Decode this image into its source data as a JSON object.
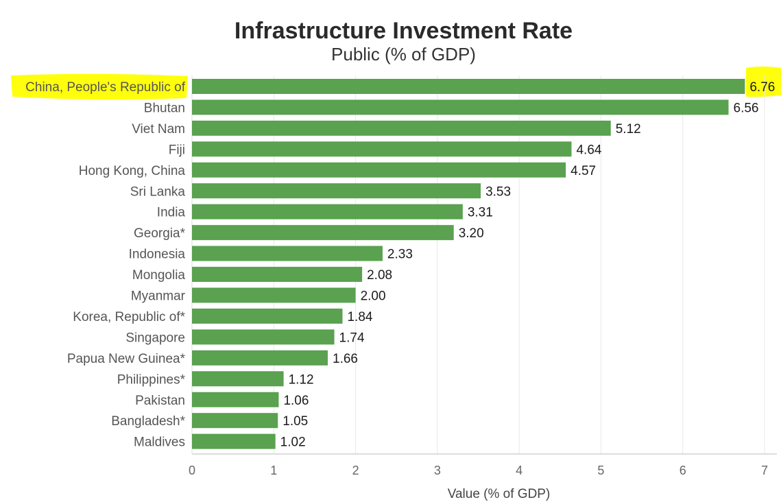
{
  "chart_data": {
    "type": "bar",
    "orientation": "horizontal",
    "title": "Infrastructure Investment Rate",
    "subtitle": "Public (% of GDP)",
    "xlabel": "Value (% of GDP)",
    "ylabel": "",
    "xlim": [
      0,
      7
    ],
    "xticks": [
      "0",
      "1",
      "2",
      "3",
      "4",
      "5",
      "6",
      "7"
    ],
    "grid": true,
    "bar_color": "#5aa150",
    "highlight_color": "#ffff00",
    "highlighted_category": "China, People's Republic of",
    "categories": [
      "China, People's Republic of",
      "Bhutan",
      "Viet Nam",
      "Fiji",
      "Hong Kong, China",
      "Sri Lanka",
      "India",
      "Georgia*",
      "Indonesia",
      "Mongolia",
      "Myanmar",
      "Korea, Republic of*",
      "Singapore",
      "Papua New Guinea*",
      "Philippines*",
      "Pakistan",
      "Bangladesh*",
      "Maldives"
    ],
    "values": [
      6.76,
      6.56,
      5.12,
      4.64,
      4.57,
      3.53,
      3.31,
      3.2,
      2.33,
      2.08,
      2.0,
      1.84,
      1.74,
      1.66,
      1.12,
      1.06,
      1.05,
      1.02
    ],
    "value_labels": [
      "6.76",
      "6.56",
      "5.12",
      "4.64",
      "4.57",
      "3.53",
      "3.31",
      "3.20",
      "2.33",
      "2.08",
      "2.00",
      "1.84",
      "1.74",
      "1.66",
      "1.12",
      "1.06",
      "1.05",
      "1.02"
    ]
  }
}
